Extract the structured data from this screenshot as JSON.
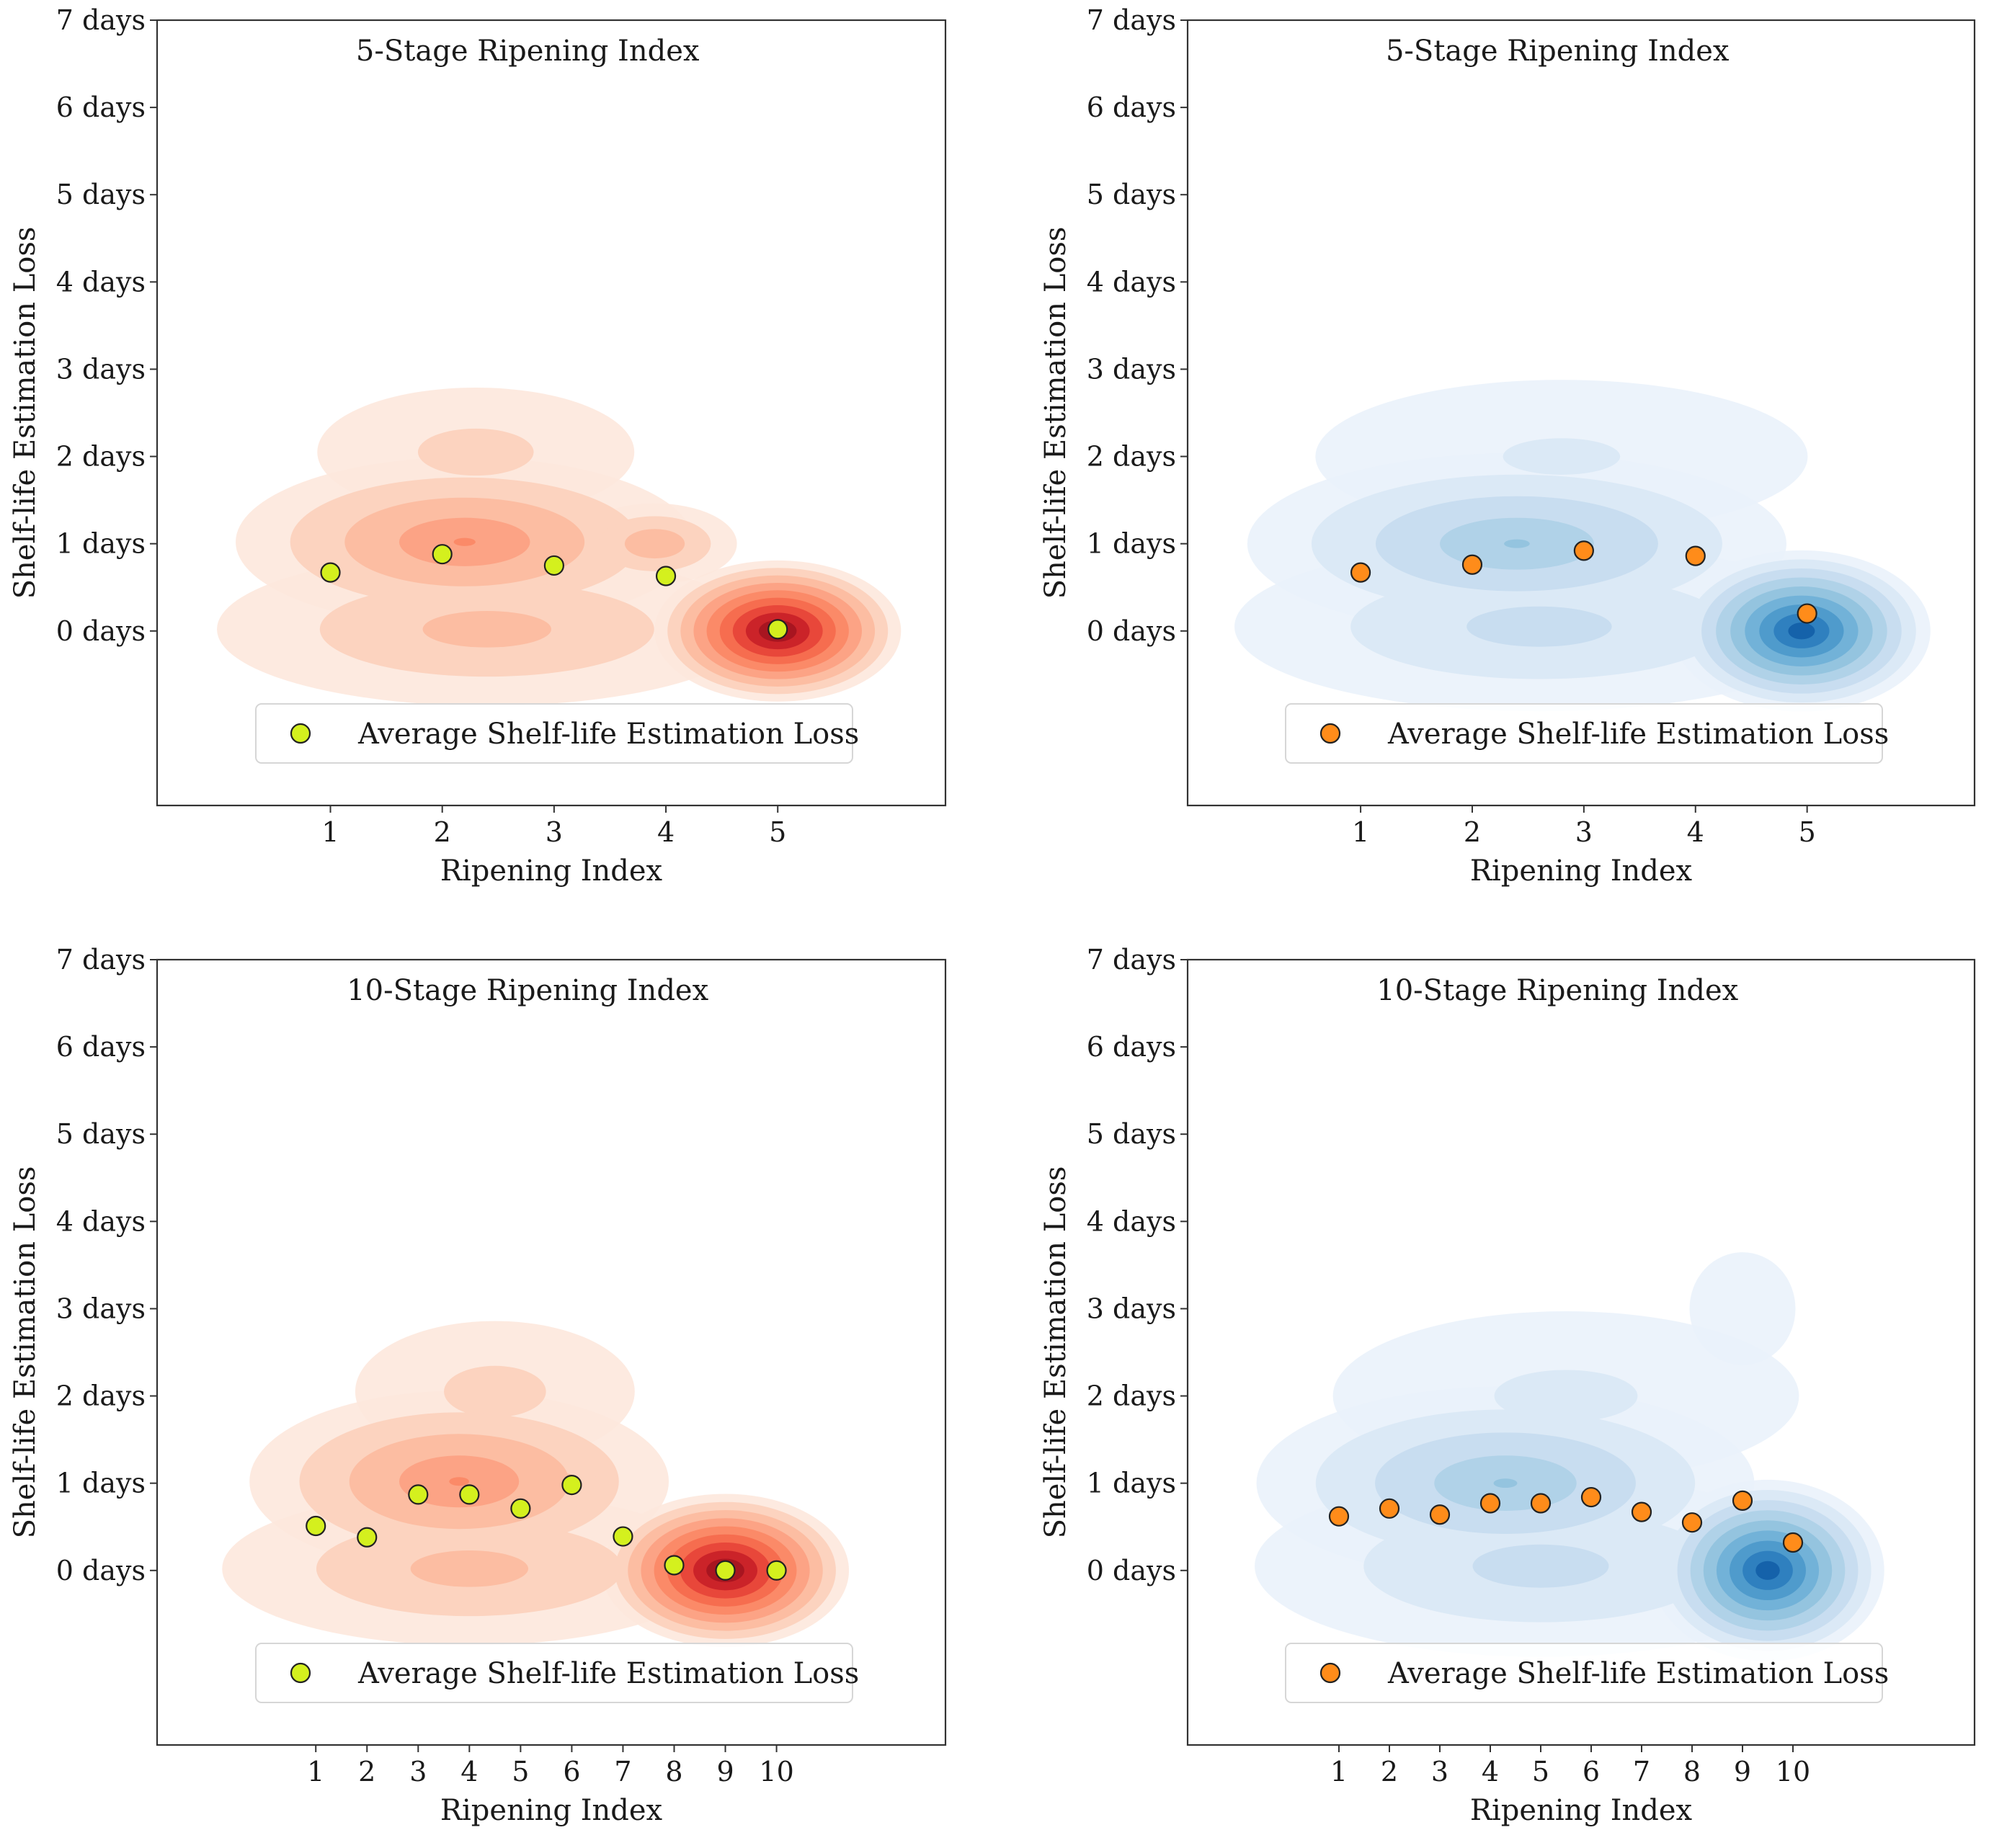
{
  "figure": {
    "legend_label": "Average Shelf-life Estimation Loss",
    "ylabel": "Shelf-life Estimation Loss",
    "xlabel": "Ripening Index",
    "y_tick_labels": [
      "0 days",
      "1 days",
      "2 days",
      "3 days",
      "4 days",
      "5 days",
      "6 days",
      "7 days"
    ],
    "colors": {
      "red_marker": "#d4f01e",
      "blue_marker": "#ff8c1a",
      "red_density": [
        "#fde8dd",
        "#fcd3bf",
        "#fcbda2",
        "#fca385",
        "#fb8a68",
        "#f66d4f",
        "#e8473a",
        "#cb2329",
        "#a81520"
      ],
      "blue_density": [
        "#eaf2fb",
        "#dbe9f6",
        "#c8ddf0",
        "#b0d2e8",
        "#94c4df",
        "#72b2d8",
        "#4f9bcc",
        "#2f80bf",
        "#1562aa"
      ]
    }
  },
  "chart_data": [
    {
      "type": "scatter",
      "id": "top-left",
      "title": "5-Stage Ripening Index",
      "xlabel": "Ripening Index",
      "ylabel": "Shelf-life Estimation Loss",
      "x_ticks": [
        1,
        2,
        3,
        4,
        5
      ],
      "xlim": [
        -0.55,
        6.5
      ],
      "ylim": [
        -2.0,
        7.0
      ],
      "colormap": "red",
      "legend": "Average Shelf-life Estimation Loss",
      "legend_position": "lower-center",
      "series": [
        {
          "name": "Average Shelf-life Estimation Loss",
          "x": [
            1,
            2,
            3,
            4,
            5
          ],
          "y": [
            0.67,
            0.88,
            0.75,
            0.63,
            0.02
          ]
        }
      ],
      "density": [
        {
          "cx": 2.3,
          "cy": 2.05,
          "rx": 1.35,
          "ry": 0.32,
          "w": 0.6
        },
        {
          "cx": 2.2,
          "cy": 1.02,
          "rx": 1.95,
          "ry": 0.42,
          "w": 1.6
        },
        {
          "cx": 3.9,
          "cy": 1.0,
          "rx": 0.7,
          "ry": 0.2,
          "w": 1.2
        },
        {
          "cx": 2.4,
          "cy": 0.02,
          "rx": 2.3,
          "ry": 0.38,
          "w": 1.0
        },
        {
          "cx": 5.0,
          "cy": 0.0,
          "rx": 1.05,
          "ry": 0.35,
          "w": 3.6
        }
      ]
    },
    {
      "type": "scatter",
      "id": "top-right",
      "title": "5-Stage Ripening Index",
      "xlabel": "Ripening Index",
      "ylabel": "Shelf-life Estimation Loss",
      "x_ticks": [
        1,
        2,
        3,
        4,
        5
      ],
      "xlim": [
        -0.55,
        6.5
      ],
      "ylim": [
        -2.0,
        7.0
      ],
      "colormap": "blue",
      "legend": "Average Shelf-life Estimation Loss",
      "legend_position": "lower-center",
      "series": [
        {
          "name": "Average Shelf-life Estimation Loss",
          "x": [
            1,
            2,
            3,
            4,
            5
          ],
          "y": [
            0.67,
            0.76,
            0.92,
            0.86,
            0.2
          ]
        }
      ],
      "density": [
        {
          "cx": 2.8,
          "cy": 2.0,
          "rx": 2.1,
          "ry": 0.38,
          "w": 0.5
        },
        {
          "cx": 2.4,
          "cy": 1.0,
          "rx": 2.3,
          "ry": 0.45,
          "w": 1.6
        },
        {
          "cx": 3.1,
          "cy": 1.0,
          "rx": 1.0,
          "ry": 0.2,
          "w": 0.8
        },
        {
          "cx": 2.6,
          "cy": 0.05,
          "rx": 2.6,
          "ry": 0.42,
          "w": 1.0
        },
        {
          "cx": 4.95,
          "cy": 0.0,
          "rx": 1.1,
          "ry": 0.4,
          "w": 3.4
        }
      ]
    },
    {
      "type": "scatter",
      "id": "bottom-left",
      "title": "10-Stage Ripening Index",
      "xlabel": "Ripening Index",
      "ylabel": "Shelf-life Estimation Loss",
      "x_ticks": [
        1,
        2,
        3,
        4,
        5,
        6,
        7,
        8,
        9,
        10
      ],
      "xlim": [
        -2.1,
        13.3
      ],
      "ylim": [
        -2.0,
        7.0
      ],
      "colormap": "red",
      "legend": "Average Shelf-life Estimation Loss",
      "legend_position": "lower-center",
      "series": [
        {
          "name": "Average Shelf-life Estimation Loss",
          "x": [
            1,
            2,
            3,
            4,
            5,
            6,
            7,
            8,
            9,
            10
          ],
          "y": [
            0.51,
            0.38,
            0.87,
            0.87,
            0.71,
            0.98,
            0.39,
            0.06,
            0.0,
            0.0
          ]
        }
      ],
      "density": [
        {
          "cx": 4.5,
          "cy": 2.05,
          "rx": 2.6,
          "ry": 0.35,
          "w": 0.6
        },
        {
          "cx": 3.8,
          "cy": 1.02,
          "rx": 3.9,
          "ry": 0.45,
          "w": 1.6
        },
        {
          "cx": 5.9,
          "cy": 1.0,
          "rx": 0.9,
          "ry": 0.2,
          "w": 1.0
        },
        {
          "cx": 4.0,
          "cy": 0.02,
          "rx": 4.6,
          "ry": 0.38,
          "w": 1.0
        },
        {
          "cx": 9.0,
          "cy": 0.0,
          "rx": 2.3,
          "ry": 0.38,
          "w": 3.6
        }
      ]
    },
    {
      "type": "scatter",
      "id": "bottom-right",
      "title": "10-Stage Ripening Index",
      "xlabel": "Ripening Index",
      "ylabel": "Shelf-life Estimation Loss",
      "x_ticks": [
        1,
        2,
        3,
        4,
        5,
        6,
        7,
        8,
        9,
        10
      ],
      "xlim": [
        -2.0,
        13.6
      ],
      "ylim": [
        -2.0,
        7.0
      ],
      "colormap": "blue",
      "legend": "Average Shelf-life Estimation Loss",
      "legend_position": "lower-center",
      "series": [
        {
          "name": "Average Shelf-life Estimation Loss",
          "x": [
            1,
            2,
            3,
            4,
            5,
            6,
            7,
            8,
            9,
            10
          ],
          "y": [
            0.62,
            0.71,
            0.64,
            0.77,
            0.77,
            0.84,
            0.67,
            0.55,
            0.8,
            0.32
          ]
        }
      ],
      "density": [
        {
          "cx": 9.0,
          "cy": 3.0,
          "rx": 1.0,
          "ry": 0.28,
          "w": 0.35
        },
        {
          "cx": 5.5,
          "cy": 2.0,
          "rx": 4.4,
          "ry": 0.42,
          "w": 0.55
        },
        {
          "cx": 4.3,
          "cy": 1.0,
          "rx": 4.7,
          "ry": 0.48,
          "w": 1.6
        },
        {
          "cx": 5.0,
          "cy": 0.05,
          "rx": 5.4,
          "ry": 0.45,
          "w": 1.0
        },
        {
          "cx": 9.5,
          "cy": 0.0,
          "rx": 2.2,
          "ry": 0.45,
          "w": 3.4
        }
      ]
    }
  ]
}
